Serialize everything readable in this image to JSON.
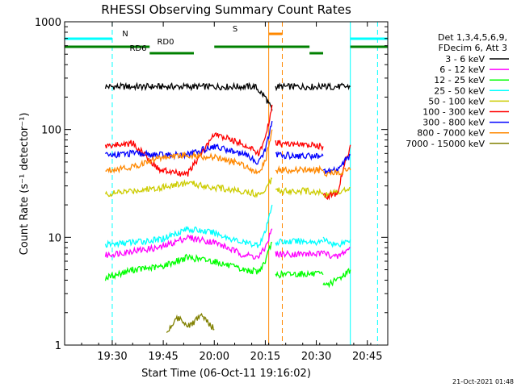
{
  "chart_data": {
    "type": "line",
    "title": "RHESSI Observing Summary Count Rates",
    "xlabel": "Start Time (06-Oct-11 19:16:02)",
    "ylabel": "Count Rate (s⁻¹ detector⁻¹)",
    "yscale": "log",
    "ylim": [
      1,
      1000
    ],
    "xlim_minutes": [
      0,
      95
    ],
    "x_ticks": [
      {
        "min": 14,
        "label": "19:30"
      },
      {
        "min": 29,
        "label": "19:45"
      },
      {
        "min": 44,
        "label": "20:00"
      },
      {
        "min": 59,
        "label": "20:15"
      },
      {
        "min": 74,
        "label": "20:30"
      },
      {
        "min": 89,
        "label": "20:45"
      }
    ],
    "y_ticks": [
      {
        "v": 1,
        "label": "1"
      },
      {
        "v": 10,
        "label": "10"
      },
      {
        "v": 100,
        "label": "100"
      },
      {
        "v": 1000,
        "label": "1000"
      }
    ],
    "legend_header": [
      "Det 1,3,4,5,6,9,",
      "FDecim 6, Att 3"
    ],
    "legend_position": "right",
    "series": [
      {
        "name": "3 - 6 keV",
        "color": "#000000",
        "segments": [
          [
            [
              12,
              250
            ],
            [
              28,
              250
            ],
            [
              44,
              250
            ],
            [
              56,
              250
            ],
            [
              59,
              200
            ],
            [
              61,
              150
            ]
          ],
          [
            [
              62,
              250
            ],
            [
              76,
              250
            ]
          ],
          [
            [
              76,
              250
            ],
            [
              84,
              250
            ]
          ]
        ]
      },
      {
        "name": "6 - 12 keV",
        "color": "#ff00ff",
        "segments": [
          [
            [
              12,
              6.8
            ],
            [
              20,
              7.5
            ],
            [
              28,
              8
            ],
            [
              36,
              10
            ],
            [
              44,
              9
            ],
            [
              52,
              7
            ],
            [
              57,
              6.5
            ],
            [
              59,
              8
            ],
            [
              61,
              12
            ]
          ],
          [
            [
              62,
              7
            ],
            [
              70,
              7
            ],
            [
              76,
              7
            ]
          ],
          [
            [
              76,
              7.2
            ],
            [
              80,
              6.5
            ],
            [
              84,
              8
            ]
          ]
        ]
      },
      {
        "name": "12 - 25 keV",
        "color": "#00ff00",
        "segments": [
          [
            [
              12,
              4.2
            ],
            [
              20,
              5
            ],
            [
              28,
              5.3
            ],
            [
              36,
              6.5
            ],
            [
              44,
              6
            ],
            [
              52,
              5
            ],
            [
              57,
              4.8
            ],
            [
              59,
              6
            ],
            [
              61,
              9
            ]
          ],
          [
            [
              62,
              4.5
            ],
            [
              70,
              4.6
            ],
            [
              76,
              4.5
            ]
          ],
          [
            [
              76,
              3.5
            ],
            [
              80,
              4
            ],
            [
              84,
              5
            ]
          ]
        ]
      },
      {
        "name": "25 - 50 keV",
        "color": "#00ffff",
        "segments": [
          [
            [
              12,
              8.5
            ],
            [
              20,
              9
            ],
            [
              28,
              9.5
            ],
            [
              36,
              12
            ],
            [
              44,
              11
            ],
            [
              52,
              9
            ],
            [
              57,
              8.5
            ],
            [
              59,
              11
            ],
            [
              61,
              20
            ]
          ],
          [
            [
              62,
              9
            ],
            [
              70,
              9.2
            ],
            [
              76,
              9
            ]
          ],
          [
            [
              76,
              9.5
            ],
            [
              80,
              8.5
            ],
            [
              84,
              9.5
            ]
          ]
        ]
      },
      {
        "name": "50 - 100 keV",
        "color": "#cccc00",
        "segments": [
          [
            [
              12,
              25
            ],
            [
              20,
              27
            ],
            [
              28,
              29
            ],
            [
              36,
              32
            ],
            [
              44,
              29
            ],
            [
              52,
              27
            ],
            [
              57,
              25
            ],
            [
              59,
              28
            ],
            [
              61,
              35
            ]
          ],
          [
            [
              62,
              27
            ],
            [
              70,
              27
            ],
            [
              76,
              26
            ]
          ],
          [
            [
              76,
              25
            ],
            [
              80,
              26
            ],
            [
              84,
              29
            ]
          ]
        ]
      },
      {
        "name": "100 - 300 keV",
        "color": "#ff0000",
        "segments": [
          [
            [
              12,
              70
            ],
            [
              20,
              75
            ],
            [
              28,
              42
            ],
            [
              36,
              38
            ],
            [
              44,
              90
            ],
            [
              52,
              75
            ],
            [
              57,
              60
            ],
            [
              59,
              80
            ],
            [
              61,
              170
            ]
          ],
          [
            [
              62,
              75
            ],
            [
              70,
              72
            ],
            [
              76,
              70
            ]
          ],
          [
            [
              76,
              24
            ],
            [
              80,
              25
            ],
            [
              84,
              72
            ]
          ]
        ]
      },
      {
        "name": "300 - 800 keV",
        "color": "#0000ff",
        "segments": [
          [
            [
              12,
              58
            ],
            [
              20,
              60
            ],
            [
              28,
              58
            ],
            [
              36,
              58
            ],
            [
              44,
              70
            ],
            [
              52,
              60
            ],
            [
              57,
              50
            ],
            [
              59,
              65
            ],
            [
              61,
              120
            ]
          ],
          [
            [
              62,
              58
            ],
            [
              70,
              57
            ],
            [
              76,
              57
            ]
          ],
          [
            [
              76,
              40
            ],
            [
              80,
              42
            ],
            [
              84,
              58
            ]
          ]
        ]
      },
      {
        "name": "800 - 7000 keV",
        "color": "#ff8800",
        "segments": [
          [
            [
              12,
              42
            ],
            [
              20,
              45
            ],
            [
              28,
              55
            ],
            [
              36,
              58
            ],
            [
              44,
              55
            ],
            [
              52,
              48
            ],
            [
              57,
              40
            ],
            [
              59,
              50
            ],
            [
              61,
              100
            ]
          ],
          [
            [
              62,
              42
            ],
            [
              70,
              42
            ],
            [
              76,
              42
            ]
          ],
          [
            [
              76,
              38
            ],
            [
              80,
              40
            ],
            [
              84,
              42
            ]
          ]
        ]
      },
      {
        "name": "7000 - 15000 keV",
        "color": "#808000",
        "segments": [
          [
            [
              30,
              1.3
            ],
            [
              33,
              1.8
            ],
            [
              37,
              1.5
            ],
            [
              40,
              1.9
            ],
            [
              44,
              1.4
            ]
          ]
        ]
      }
    ],
    "annotations": {
      "flags": [
        {
          "label": "N",
          "color": "#00ffff",
          "segments": [
            [
              0,
              14
            ],
            [
              84,
              95
            ]
          ]
        },
        {
          "label": "S",
          "color": "#ff8800",
          "segments": [
            [
              60,
              64
            ]
          ]
        },
        {
          "label": "RD0",
          "color": "#008000",
          "segments": [
            [
              0,
              25
            ],
            [
              44,
              72
            ],
            [
              84,
              95
            ]
          ]
        },
        {
          "label": "RD6",
          "color": "#008000",
          "segments": [
            [
              25,
              38
            ],
            [
              72,
              76
            ]
          ]
        }
      ],
      "vlines": [
        {
          "min": 14,
          "color": "#00ffff",
          "dash": true
        },
        {
          "min": 84,
          "color": "#00ffff",
          "dash": false
        },
        {
          "min": 92,
          "color": "#00ffff",
          "dash": true
        },
        {
          "min": 60,
          "color": "#ff8800",
          "dash": false
        },
        {
          "min": 64,
          "color": "#ff8800",
          "dash": true
        }
      ]
    },
    "footer_timestamp": "21-Oct-2021 01:48"
  }
}
